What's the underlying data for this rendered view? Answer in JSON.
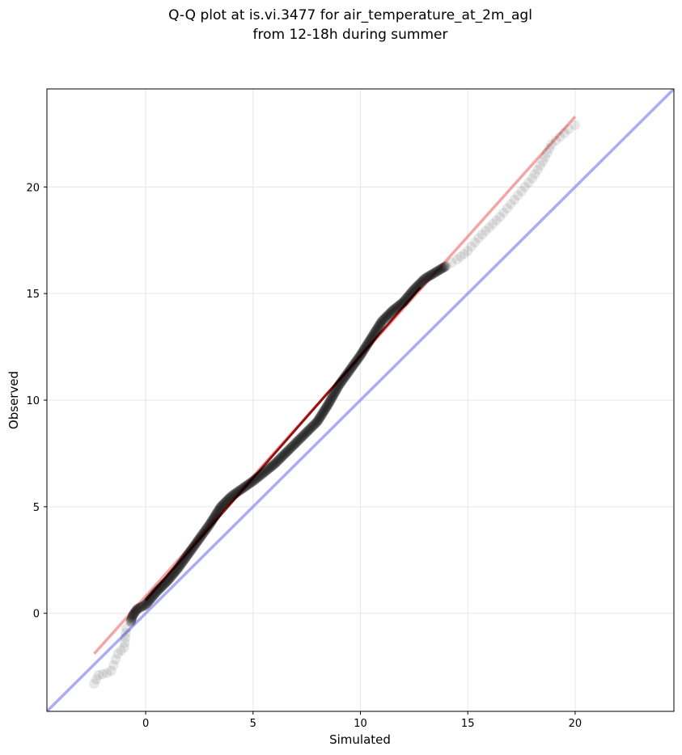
{
  "chart_data": {
    "type": "scatter",
    "title": "Q-Q plot at is.vi.3477 for air_temperature_at_2m_agl",
    "subtitle": "from 12-18h during summer",
    "xlabel": "Simulated",
    "ylabel": "Observed",
    "xlim": [
      -4.6,
      24.6
    ],
    "ylim": [
      -4.6,
      24.6
    ],
    "xticks": [
      0,
      5,
      10,
      15,
      20
    ],
    "yticks": [
      0,
      5,
      10,
      15,
      20
    ],
    "grid": true,
    "colors": {
      "points": "#000000",
      "fit_line": "#f08080",
      "identity_line": "#8080f0",
      "central_line": "#8b0000",
      "grid": "#e6e6e6"
    },
    "quantile_curve": [
      [
        -2.4,
        -3.3
      ],
      [
        -2.2,
        -2.9
      ],
      [
        -1.8,
        -2.8
      ],
      [
        -1.6,
        -2.7
      ],
      [
        -1.3,
        -1.9
      ],
      [
        -1.0,
        -1.6
      ],
      [
        -0.9,
        -0.7
      ],
      [
        -0.7,
        -0.4
      ],
      [
        -0.6,
        -0.1
      ],
      [
        -0.4,
        0.2
      ],
      [
        0.0,
        0.4
      ],
      [
        0.5,
        1.0
      ],
      [
        1.0,
        1.5
      ],
      [
        1.5,
        2.1
      ],
      [
        2.0,
        2.8
      ],
      [
        2.5,
        3.5
      ],
      [
        3.0,
        4.2
      ],
      [
        3.5,
        5.0
      ],
      [
        4.0,
        5.5
      ],
      [
        5.0,
        6.2
      ],
      [
        6.0,
        7.0
      ],
      [
        7.0,
        8.0
      ],
      [
        8.0,
        9.0
      ],
      [
        8.5,
        9.8
      ],
      [
        9.0,
        10.7
      ],
      [
        9.5,
        11.4
      ],
      [
        10.0,
        12.1
      ],
      [
        10.5,
        12.9
      ],
      [
        11.0,
        13.7
      ],
      [
        11.5,
        14.2
      ],
      [
        12.0,
        14.6
      ],
      [
        12.5,
        15.2
      ],
      [
        13.0,
        15.7
      ],
      [
        13.5,
        16.0
      ],
      [
        14.0,
        16.3
      ],
      [
        14.5,
        16.6
      ],
      [
        15.0,
        17.0
      ],
      [
        15.5,
        17.6
      ],
      [
        16.0,
        18.1
      ],
      [
        16.5,
        18.6
      ],
      [
        17.0,
        19.2
      ],
      [
        17.5,
        19.8
      ],
      [
        18.0,
        20.4
      ],
      [
        18.5,
        21.2
      ],
      [
        18.9,
        22.0
      ],
      [
        19.7,
        22.7
      ],
      [
        20.0,
        22.9
      ]
    ],
    "fit_line": [
      [
        -2.4,
        -1.9
      ],
      [
        20.0,
        23.3
      ]
    ],
    "identity_line": [
      [
        -4.6,
        -4.6
      ],
      [
        24.6,
        24.6
      ]
    ],
    "central_line": [
      [
        0.0,
        0.6
      ],
      [
        12.8,
        15.3
      ]
    ]
  }
}
